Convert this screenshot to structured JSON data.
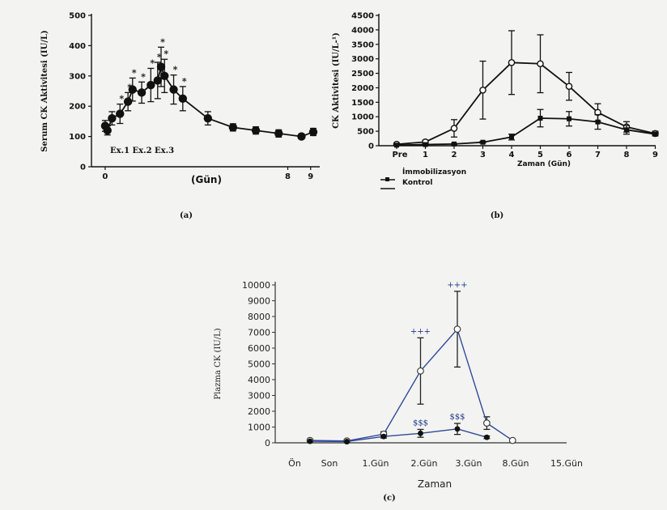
{
  "chart_data": [
    {
      "panel_label": "(a)",
      "type": "line",
      "ylabel": "Serum CK Aktivitesi (IU/L)",
      "xlabel": "(Gün)",
      "ylim": [
        0,
        500
      ],
      "yticks": [
        0,
        100,
        200,
        300,
        400,
        500
      ],
      "xlim": [
        -0.6,
        9.4
      ],
      "xticks": [
        0,
        8,
        9
      ],
      "xtick_labels": [
        "0",
        "8",
        "9"
      ],
      "annotations": [
        "Ex.1 Ex.2 Ex.3"
      ],
      "significance_marker": "*",
      "series": [
        {
          "marker": "filled-circle",
          "x": [
            0,
            0.1,
            0.3,
            0.65,
            1.0,
            1.2,
            1.6,
            2.0,
            2.3,
            2.45,
            2.6,
            3.0,
            3.4,
            4.5,
            5.6,
            6.6,
            7.6,
            8.6,
            9.6
          ],
          "y": [
            135,
            120,
            160,
            175,
            215,
            255,
            245,
            270,
            285,
            330,
            300,
            255,
            225,
            160,
            130,
            120,
            110,
            100,
            115
          ],
          "err": [
            18,
            15,
            22,
            32,
            30,
            38,
            35,
            55,
            60,
            65,
            55,
            48,
            40,
            22,
            12,
            12,
            12,
            8,
            12
          ],
          "sig": [
            false,
            false,
            false,
            true,
            true,
            true,
            true,
            true,
            true,
            true,
            true,
            true,
            true,
            false,
            false,
            false,
            false,
            false,
            false
          ]
        }
      ]
    },
    {
      "panel_label": "(b)",
      "type": "line",
      "ylabel": "CK Aktivitesi (IU/L-¹)",
      "xlabel": "Zaman (Gün)",
      "ylim": [
        0,
        4500
      ],
      "yticks": [
        0,
        500,
        1000,
        1500,
        2000,
        2500,
        3000,
        3500,
        4000,
        4500
      ],
      "categories": [
        "Pre",
        "1",
        "2",
        "3",
        "4",
        "5",
        "6",
        "7",
        "8",
        "9"
      ],
      "legend": [
        "İmmobilizasyon",
        "Kontrol"
      ],
      "series": [
        {
          "marker": "open-circle",
          "values": [
            50,
            130,
            600,
            1920,
            2870,
            2830,
            2050,
            1150,
            650,
            420
          ],
          "err": [
            20,
            60,
            300,
            1000,
            1100,
            1000,
            480,
            300,
            180,
            80
          ]
        },
        {
          "marker": "filled-square",
          "values": [
            20,
            40,
            60,
            120,
            300,
            950,
            930,
            820,
            550,
            400
          ],
          "err": [
            10,
            15,
            20,
            30,
            100,
            300,
            250,
            250,
            150,
            60
          ]
        }
      ]
    },
    {
      "panel_label": "(c)",
      "type": "line",
      "ylabel": "Plazma CK (IU/L)",
      "xlabel": "Zaman",
      "ylim": [
        0,
        10000
      ],
      "yticks": [
        0,
        1000,
        2000,
        3000,
        4000,
        5000,
        6000,
        7000,
        8000,
        9000,
        10000
      ],
      "categories": [
        "Ön",
        "Son",
        "1.Gün",
        "2.Gün",
        "3.Gün",
        "8.Gün",
        "15.Gün"
      ],
      "series": [
        {
          "marker": "open-circle",
          "x": [
            0,
            1,
            2,
            3,
            4,
            4.8,
            5.5
          ],
          "values": [
            150,
            120,
            550,
            4550,
            7200,
            1250,
            150
          ],
          "err": [
            30,
            30,
            150,
            2100,
            2400,
            400,
            40
          ],
          "sig": [
            "",
            "",
            "",
            "+++",
            "+++",
            "",
            ""
          ]
        },
        {
          "marker": "filled-circle",
          "x": [
            0,
            1,
            2,
            3,
            4,
            4.8
          ],
          "values": [
            100,
            80,
            400,
            600,
            880,
            350
          ],
          "err": [
            20,
            20,
            100,
            250,
            350,
            80
          ],
          "sig": [
            "",
            "",
            "",
            "$$$",
            "$$$",
            ""
          ]
        }
      ]
    }
  ]
}
